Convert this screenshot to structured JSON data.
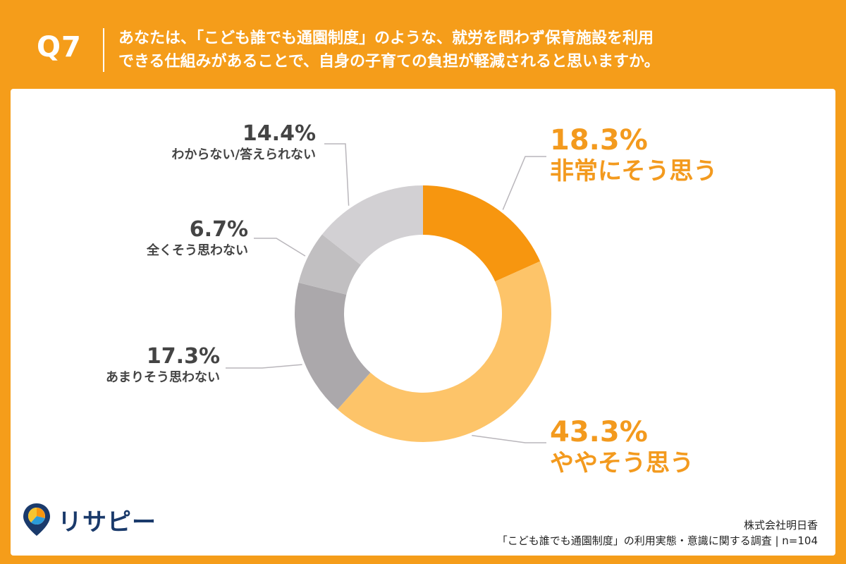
{
  "question": {
    "label": "Q7",
    "line1": "あなたは、「こども誰でも通園制度」のような、就労を問わず保育施設を利用",
    "line2": "できる仕組みがあることで、自身の子育ての負担が軽減されると思いますか。"
  },
  "chart_data": {
    "type": "pie",
    "donut": true,
    "slices": [
      {
        "label": "非常にそう思う",
        "value": 18.3,
        "display": "18.3%",
        "color": "#F7960F"
      },
      {
        "label": "ややそう思う",
        "value": 43.3,
        "display": "43.3%",
        "color": "#FDC469"
      },
      {
        "label": "あまりそう思わない",
        "value": 17.3,
        "display": "17.3%",
        "color": "#ABA8AB"
      },
      {
        "label": "全くそう思わない",
        "value": 6.7,
        "display": "6.7%",
        "color": "#C1BFC1"
      },
      {
        "label": "わからない/答えられない",
        "value": 14.4,
        "display": "14.4%",
        "color": "#D2D0D3"
      }
    ],
    "start": "top",
    "direction": "clockwise"
  },
  "logo": {
    "text": "リサピー"
  },
  "footer": {
    "company": "株式会社明日香",
    "survey": "「こども誰でも通園制度」の利用実態・意識に関する調査 | n=104"
  }
}
